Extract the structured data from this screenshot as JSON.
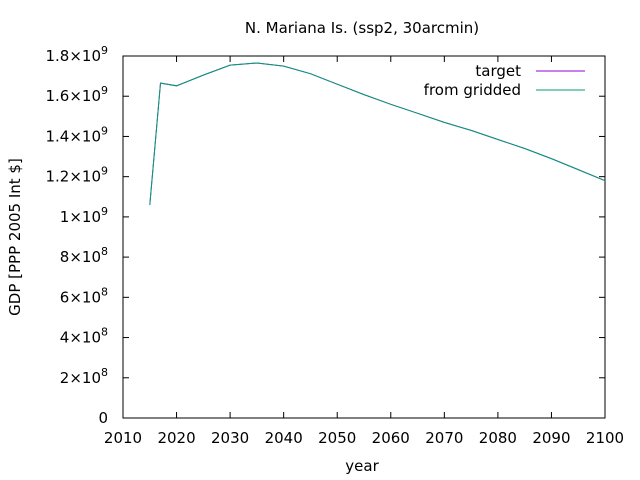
{
  "chart_data": {
    "type": "line",
    "title": "N. Mariana Is. (ssp2, 30arcmin)",
    "xlabel": "year",
    "ylabel": "GDP [PPP 2005 Int $]",
    "xlim": [
      2010,
      2100
    ],
    "ylim": [
      0,
      1800000000
    ],
    "x_ticks": [
      2010,
      2020,
      2030,
      2040,
      2050,
      2060,
      2070,
      2080,
      2090,
      2100
    ],
    "y_ticks": [
      {
        "value": 0,
        "mantissa": "0",
        "exp": ""
      },
      {
        "value": 200000000,
        "mantissa": "2×10",
        "exp": "8"
      },
      {
        "value": 400000000,
        "mantissa": "4×10",
        "exp": "8"
      },
      {
        "value": 600000000,
        "mantissa": "6×10",
        "exp": "8"
      },
      {
        "value": 800000000,
        "mantissa": "8×10",
        "exp": "8"
      },
      {
        "value": 1000000000,
        "mantissa": "1×10",
        "exp": "9"
      },
      {
        "value": 1200000000,
        "mantissa": "1.2×10",
        "exp": "9"
      },
      {
        "value": 1400000000,
        "mantissa": "1.4×10",
        "exp": "9"
      },
      {
        "value": 1600000000,
        "mantissa": "1.6×10",
        "exp": "9"
      },
      {
        "value": 1800000000,
        "mantissa": "1.8×10",
        "exp": "9"
      }
    ],
    "grid": false,
    "legend_position": "top-right",
    "series": [
      {
        "name": "target",
        "color": "#9400d3",
        "x": [
          2015,
          2017,
          2020,
          2025,
          2030,
          2035,
          2040,
          2045,
          2050,
          2055,
          2060,
          2065,
          2070,
          2075,
          2080,
          2085,
          2090,
          2095,
          2100
        ],
        "y": [
          1060000000,
          1665000000,
          1652000000,
          1705000000,
          1755000000,
          1765000000,
          1750000000,
          1712000000,
          1660000000,
          1608000000,
          1560000000,
          1515000000,
          1470000000,
          1430000000,
          1385000000,
          1340000000,
          1290000000,
          1235000000,
          1180000000
        ]
      },
      {
        "name": "from gridded",
        "color": "#009e73",
        "x": [
          2015,
          2017,
          2020,
          2025,
          2030,
          2035,
          2040,
          2045,
          2050,
          2055,
          2060,
          2065,
          2070,
          2075,
          2080,
          2085,
          2090,
          2095,
          2100
        ],
        "y": [
          1060000000,
          1665000000,
          1652000000,
          1705000000,
          1755000000,
          1765000000,
          1750000000,
          1712000000,
          1660000000,
          1608000000,
          1560000000,
          1515000000,
          1470000000,
          1430000000,
          1385000000,
          1340000000,
          1290000000,
          1235000000,
          1180000000
        ]
      }
    ]
  }
}
